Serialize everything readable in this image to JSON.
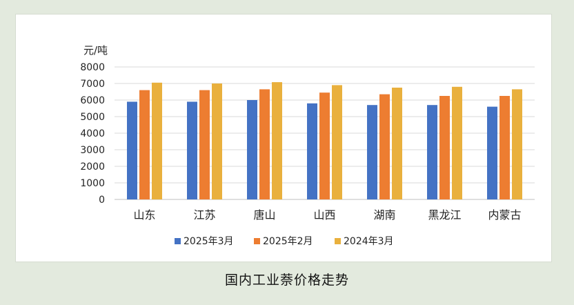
{
  "caption": "国内工业萘价格走势",
  "chart_data": {
    "type": "bar",
    "unit_label": "元/吨",
    "ylim": [
      0,
      8000
    ],
    "yticks": [
      0,
      1000,
      2000,
      3000,
      4000,
      5000,
      6000,
      7000,
      8000
    ],
    "grid": true,
    "legend_position": "bottom",
    "categories": [
      "山东",
      "江苏",
      "唐山",
      "山西",
      "湖南",
      "黑龙江",
      "内蒙古"
    ],
    "series": [
      {
        "name": "2025年3月",
        "color": "#4472c4",
        "values": [
          5900,
          5900,
          6000,
          5800,
          5700,
          5700,
          5600
        ]
      },
      {
        "name": "2025年2月",
        "color": "#ed7d31",
        "values": [
          6600,
          6600,
          6650,
          6450,
          6350,
          6250,
          6250
        ]
      },
      {
        "name": "2024年3月",
        "color": "#e9b03d",
        "values": [
          7050,
          7000,
          7080,
          6900,
          6750,
          6800,
          6650
        ]
      }
    ]
  }
}
